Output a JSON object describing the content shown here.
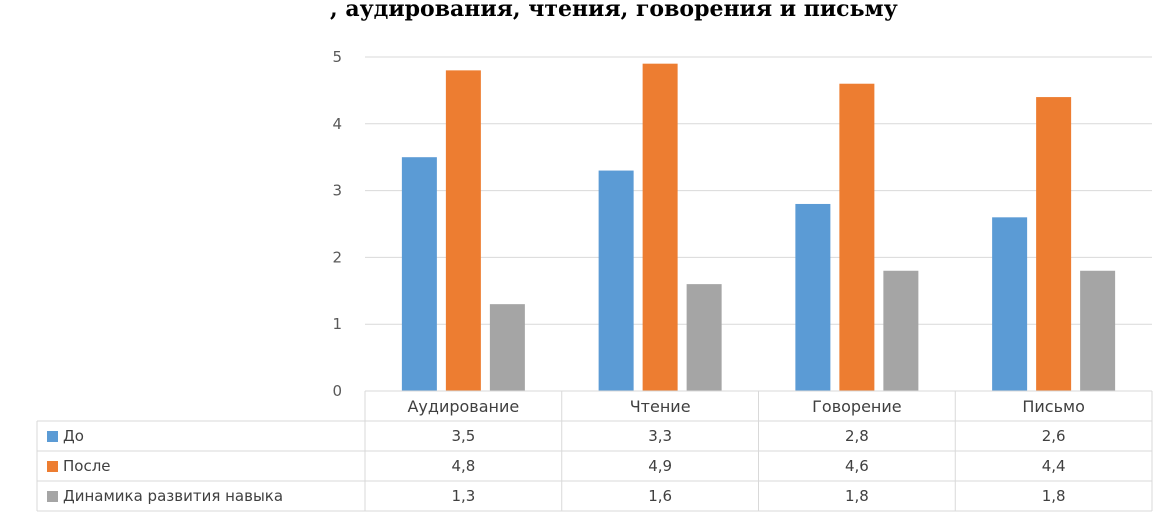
{
  "title_fragment": ", аудирования, чтения, говорения и письму",
  "colors": {
    "До": "#5b9bd5",
    "После": "#ed7d31",
    "Динамика развития навыка": "#a5a5a5"
  },
  "chart_data": {
    "type": "bar",
    "categories": [
      "Аудирование",
      "Чтение",
      "Говорение",
      "Письмо"
    ],
    "series": [
      {
        "name": "До",
        "values": [
          3.5,
          3.3,
          2.8,
          2.6
        ],
        "labels": [
          "3,5",
          "3,3",
          "2,8",
          "2,6"
        ]
      },
      {
        "name": "После",
        "values": [
          4.8,
          4.9,
          4.6,
          4.4
        ],
        "labels": [
          "4,8",
          "4,9",
          "4,6",
          "4,4"
        ]
      },
      {
        "name": "Динамика развития навыка",
        "values": [
          1.3,
          1.6,
          1.8,
          1.8
        ],
        "labels": [
          "1,3",
          "1,6",
          "1,8",
          "1,8"
        ]
      }
    ],
    "ylim": [
      0,
      5
    ],
    "yticks": [
      0,
      1,
      2,
      3,
      4,
      5
    ],
    "grid": true,
    "legend": "data-table"
  }
}
